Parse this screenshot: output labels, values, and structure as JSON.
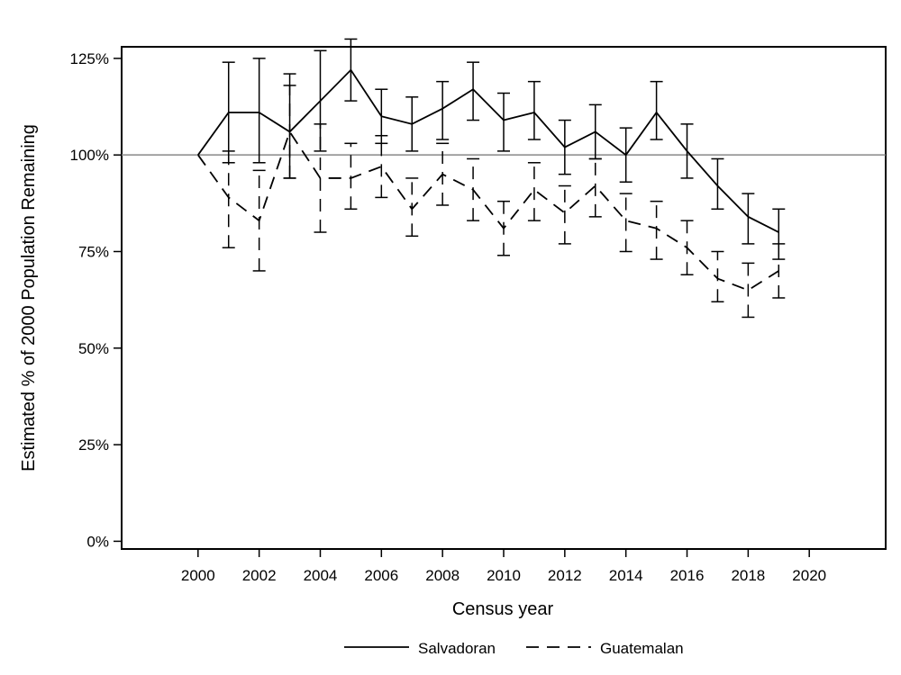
{
  "chart_data": {
    "type": "line",
    "title": "",
    "xlabel": "Census year",
    "ylabel": "Estimated % of 2000 Population Remaining",
    "xlim": [
      1997.5,
      2022.5
    ],
    "ylim": [
      -2,
      128
    ],
    "x_ticks": [
      2000,
      2002,
      2004,
      2006,
      2008,
      2010,
      2012,
      2014,
      2016,
      2018,
      2020
    ],
    "x_tick_labels": [
      "2000",
      "2002",
      "2004",
      "2006",
      "2008",
      "2010",
      "2012",
      "2014",
      "2016",
      "2018",
      "2020"
    ],
    "y_ticks": [
      0,
      25,
      50,
      75,
      100,
      125
    ],
    "y_tick_labels": [
      "0%",
      "25%",
      "50%",
      "75%",
      "100%",
      "125%"
    ],
    "reference_line": 100,
    "grid": false,
    "legend_position": "bottom",
    "x": [
      2000,
      2001,
      2002,
      2003,
      2004,
      2005,
      2006,
      2007,
      2008,
      2009,
      2010,
      2011,
      2012,
      2013,
      2014,
      2015,
      2016,
      2017,
      2018,
      2019
    ],
    "series": [
      {
        "name": "Salvadoran",
        "line_style": "solid",
        "values": [
          100,
          111,
          111,
          106,
          114,
          122,
          110,
          108,
          112,
          117,
          109,
          111,
          102,
          106,
          100,
          111,
          101,
          92,
          84,
          80
        ],
        "lower": [
          null,
          98,
          98,
          94,
          101,
          114,
          103,
          101,
          104,
          109,
          101,
          104,
          95,
          99,
          93,
          104,
          94,
          86,
          77,
          73
        ],
        "upper": [
          null,
          124,
          125,
          121,
          127,
          130,
          117,
          115,
          119,
          124,
          116,
          119,
          109,
          113,
          107,
          119,
          108,
          99,
          90,
          86
        ]
      },
      {
        "name": "Guatemalan",
        "line_style": "dashed",
        "values": [
          100,
          89,
          83,
          106,
          94,
          94,
          97,
          86,
          95,
          91,
          81,
          91,
          85,
          92,
          83,
          81,
          76,
          68,
          65,
          70
        ],
        "lower": [
          null,
          76,
          70,
          94,
          80,
          86,
          89,
          79,
          87,
          83,
          74,
          83,
          77,
          84,
          75,
          73,
          69,
          62,
          58,
          63
        ],
        "upper": [
          null,
          101,
          96,
          118,
          108,
          103,
          105,
          94,
          103,
          99,
          88,
          98,
          92,
          99,
          90,
          88,
          83,
          75,
          72,
          77
        ]
      }
    ]
  }
}
